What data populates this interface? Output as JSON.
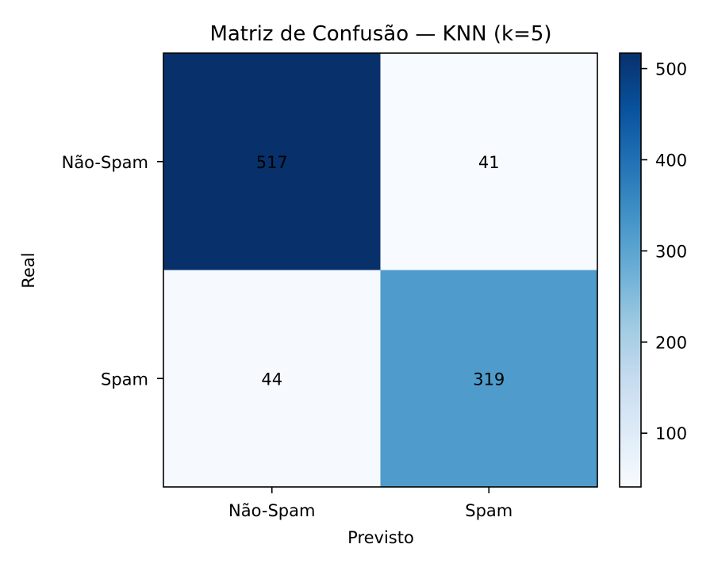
{
  "chart_data": {
    "type": "heatmap",
    "title": "Matriz de Confusão — KNN (k=5)",
    "xlabel": "Previsto",
    "ylabel": "Real",
    "x_categories": [
      "Não-Spam",
      "Spam"
    ],
    "y_categories": [
      "Não-Spam",
      "Spam"
    ],
    "values": [
      [
        517,
        41
      ],
      [
        44,
        319
      ]
    ],
    "colormap": "Blues",
    "colorbar": {
      "min": 41,
      "max": 517,
      "ticks": [
        100,
        200,
        300,
        400,
        500
      ]
    }
  }
}
